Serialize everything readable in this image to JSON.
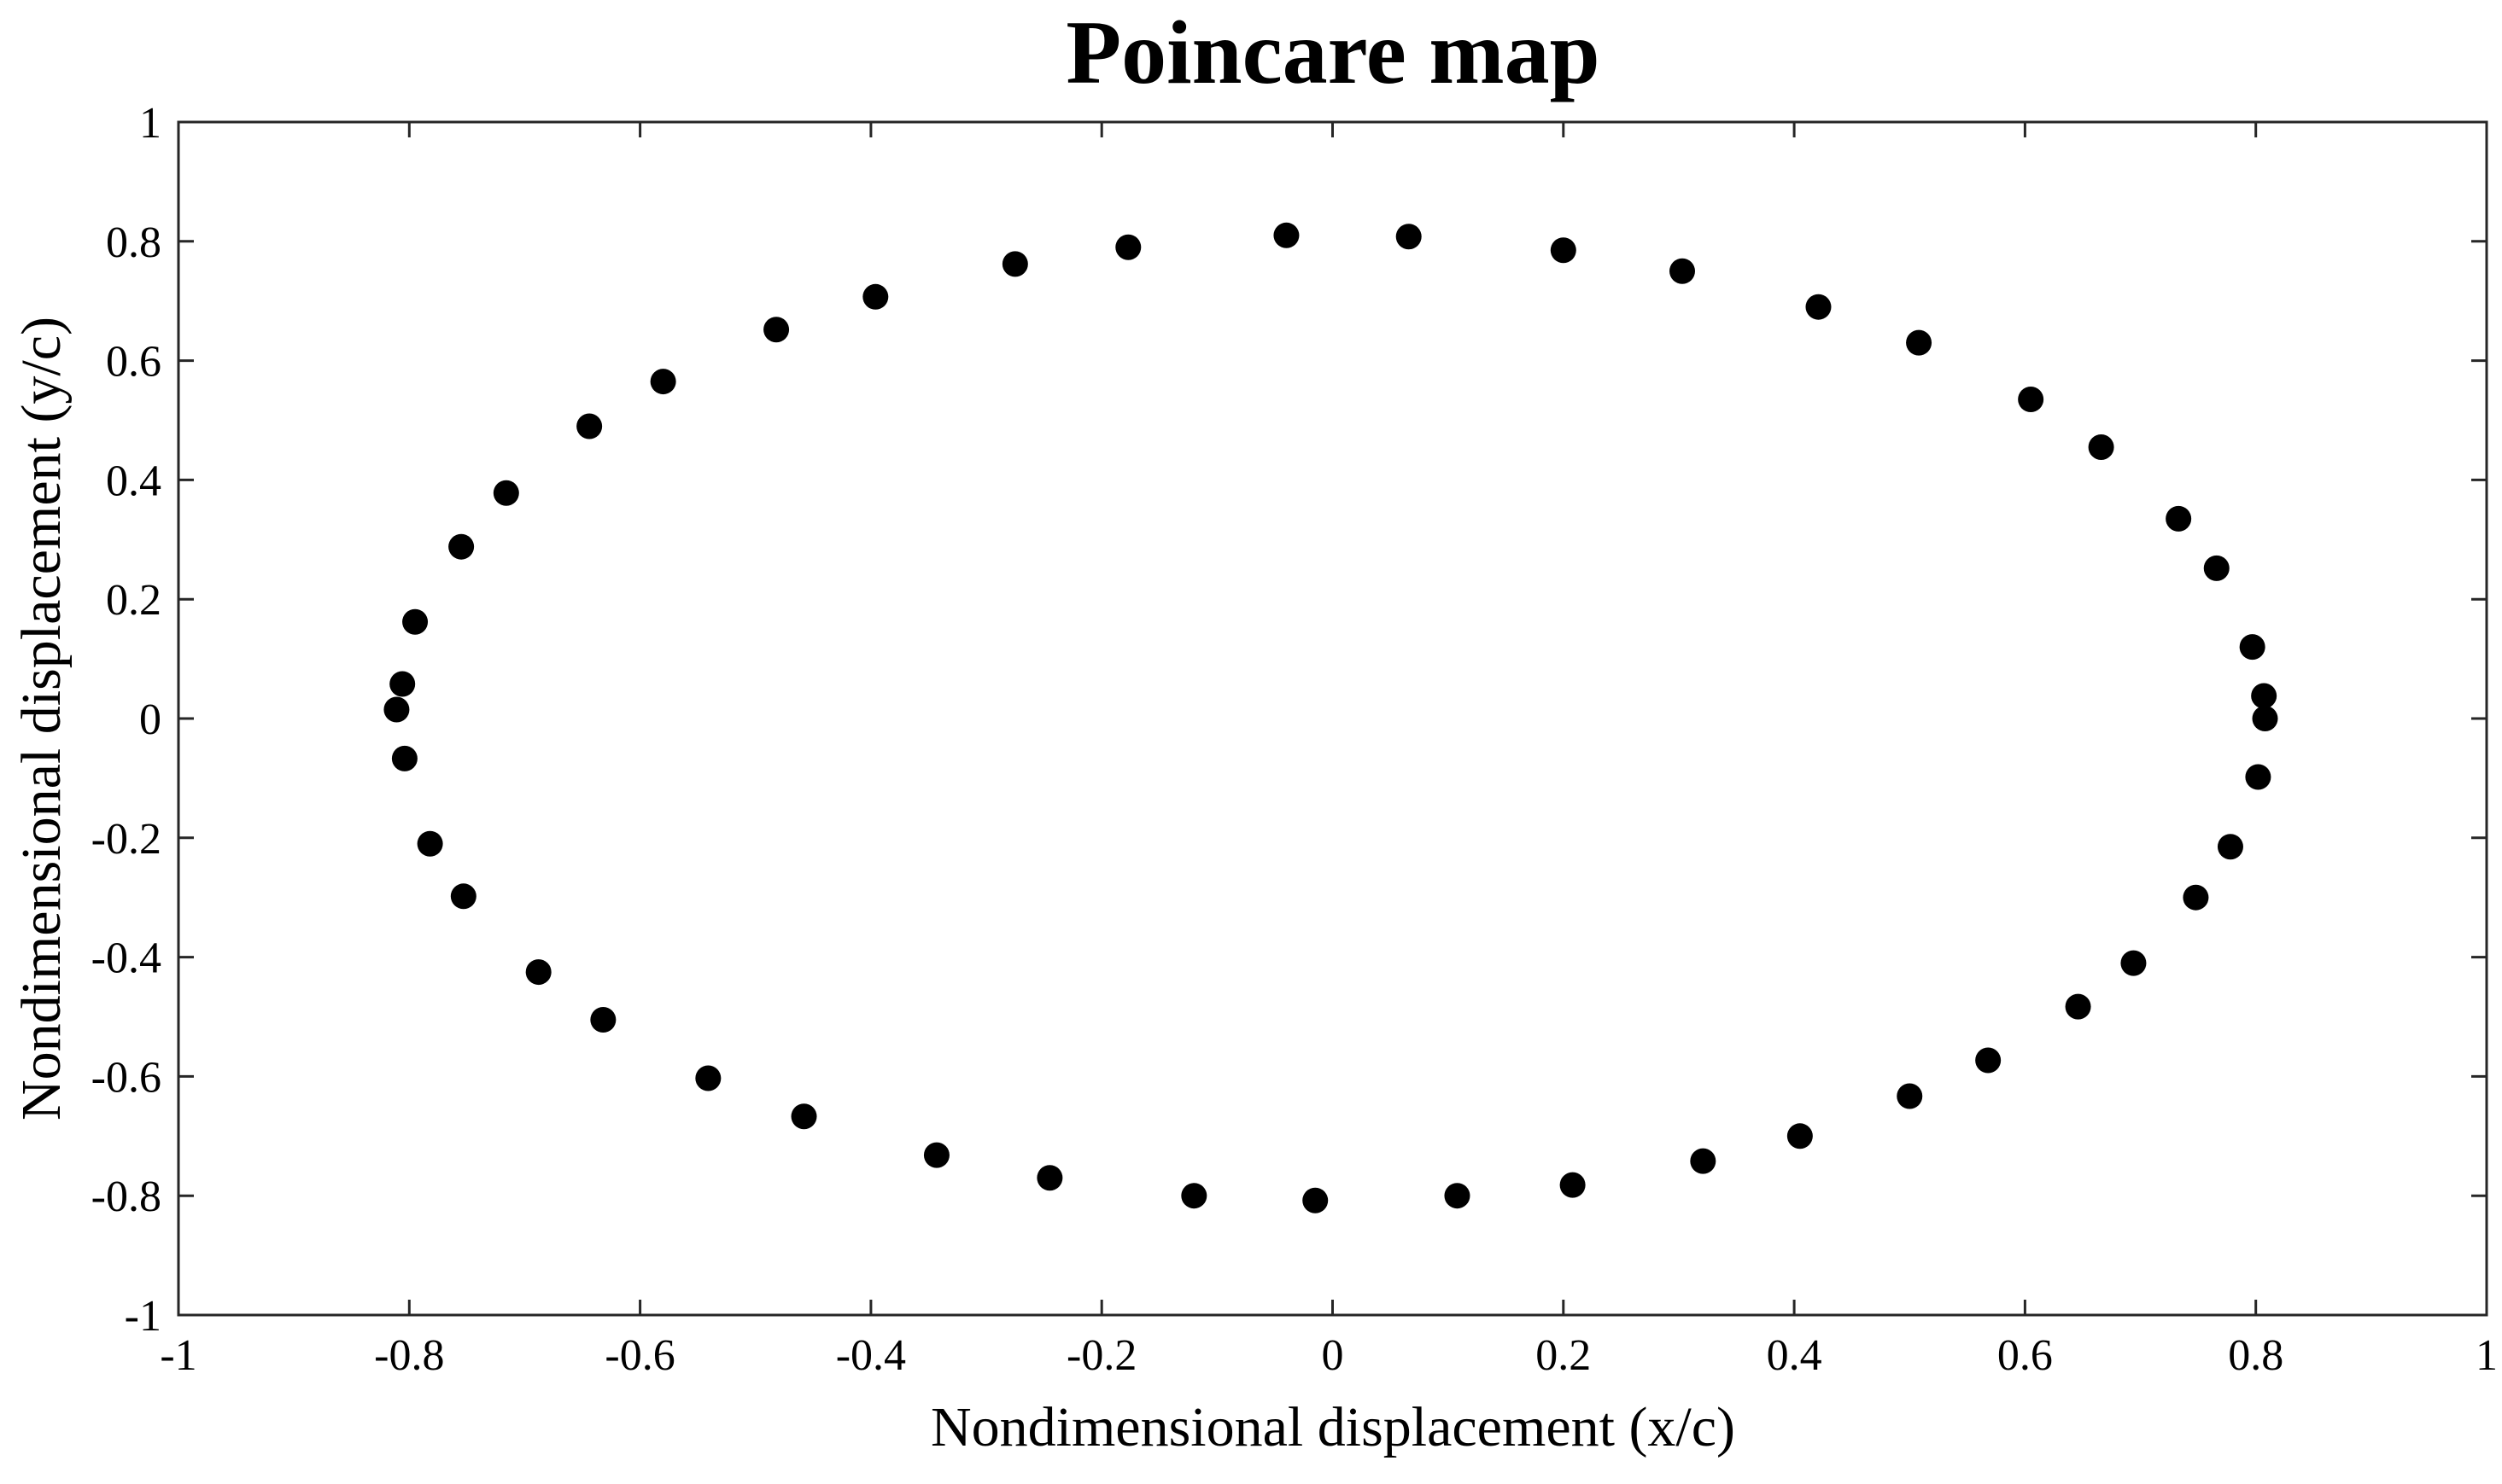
{
  "chart_data": {
    "type": "scatter",
    "title": "Poincare map",
    "xlabel": "Nondimensional displacement (x/c)",
    "ylabel": "Nondimensional displacement (y/c)",
    "xlim": [
      -1,
      1
    ],
    "ylim": [
      -1,
      1
    ],
    "xticks": [
      "-1",
      "-0.8",
      "-0.6",
      "-0.4",
      "-0.2",
      "0",
      "0.2",
      "0.4",
      "0.6",
      "0.8",
      "1"
    ],
    "yticks": [
      "1",
      "0.8",
      "0.6",
      "0.4",
      "0.2",
      "0",
      "-0.2",
      "-0.4",
      "-0.6",
      "-0.8",
      "-1"
    ],
    "grid": false,
    "marker_color": "#000000",
    "series": [
      {
        "points": [
          [
            -0.04,
            0.81
          ],
          [
            0.066,
            0.808
          ],
          [
            0.2,
            0.785
          ],
          [
            0.303,
            0.75
          ],
          [
            0.421,
            0.69
          ],
          [
            0.508,
            0.63
          ],
          [
            0.605,
            0.535
          ],
          [
            0.666,
            0.455
          ],
          [
            0.733,
            0.335
          ],
          [
            0.766,
            0.252
          ],
          [
            0.797,
            0.12
          ],
          [
            0.807,
            0.038
          ],
          [
            0.808,
            0.0
          ],
          [
            0.802,
            -0.098
          ],
          [
            0.778,
            -0.215
          ],
          [
            0.748,
            -0.3
          ],
          [
            0.694,
            -0.41
          ],
          [
            0.646,
            -0.483
          ],
          [
            0.568,
            -0.573
          ],
          [
            0.5,
            -0.633
          ],
          [
            0.405,
            -0.7
          ],
          [
            0.321,
            -0.742
          ],
          [
            0.208,
            -0.782
          ],
          [
            0.108,
            -0.8
          ],
          [
            -0.015,
            -0.808
          ],
          [
            -0.12,
            -0.8
          ],
          [
            -0.245,
            -0.77
          ],
          [
            -0.343,
            -0.732
          ],
          [
            -0.458,
            -0.667
          ],
          [
            -0.541,
            -0.603
          ],
          [
            -0.632,
            -0.505
          ],
          [
            -0.688,
            -0.425
          ],
          [
            -0.753,
            -0.298
          ],
          [
            -0.782,
            -0.21
          ],
          [
            -0.804,
            -0.067
          ],
          [
            -0.811,
            0.015
          ],
          [
            -0.806,
            0.058
          ],
          [
            -0.795,
            0.162
          ],
          [
            -0.755,
            0.288
          ],
          [
            -0.716,
            0.378
          ],
          [
            -0.644,
            0.49
          ],
          [
            -0.58,
            0.565
          ],
          [
            -0.482,
            0.652
          ],
          [
            -0.396,
            0.707
          ],
          [
            -0.275,
            0.762
          ],
          [
            -0.177,
            0.79
          ]
        ]
      }
    ]
  }
}
